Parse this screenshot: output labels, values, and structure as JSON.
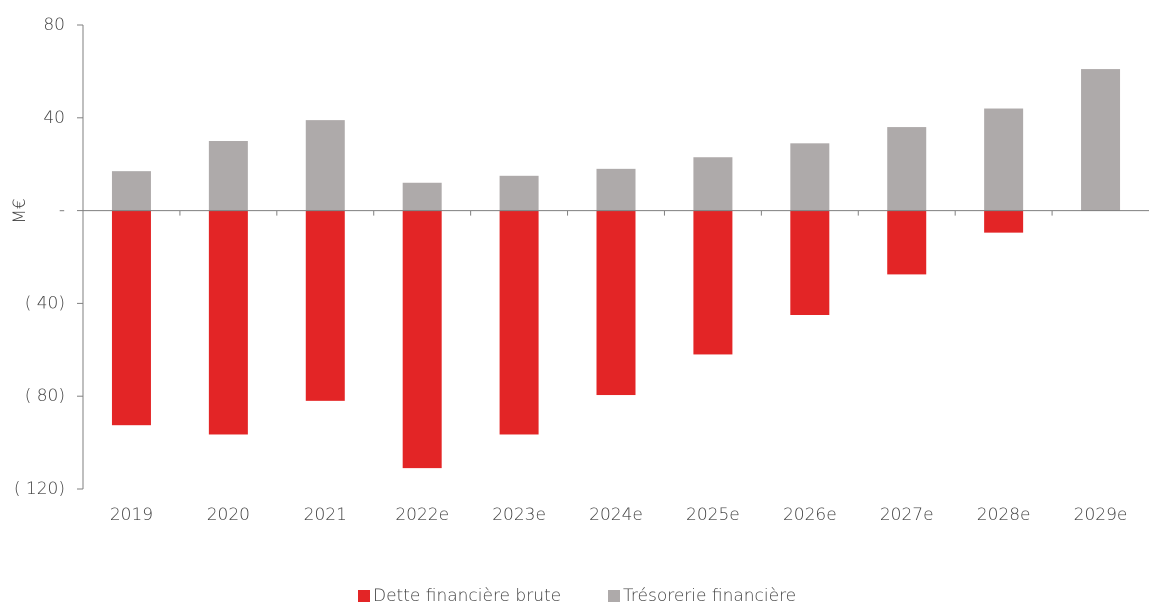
{
  "chart_data": {
    "type": "bar",
    "ylabel": "M€",
    "categories": [
      "2019",
      "2020",
      "2021",
      "2022e",
      "2023e",
      "2024e",
      "2025e",
      "2026e",
      "2027e",
      "2028e",
      "2029e"
    ],
    "series": [
      {
        "name": "Dette financière brute",
        "color": "#e32526",
        "values": [
          -92.5,
          -96.5,
          -82,
          -111,
          -96.5,
          -79.5,
          -62,
          -45,
          -27.5,
          -9.5,
          0
        ]
      },
      {
        "name": "Trésorerie financière",
        "color": "#aeaaaa",
        "values": [
          17,
          30,
          39,
          12,
          15,
          18,
          23,
          29,
          36,
          44,
          61
        ]
      }
    ],
    "ylim": [
      -120,
      80
    ],
    "yticks": [
      80,
      40,
      {
        "value": 0,
        "label": "-"
      },
      {
        "value": -40,
        "label": "( 40)"
      },
      {
        "value": -80,
        "label": "( 80)"
      },
      {
        "value": -120,
        "label": "( 120)"
      }
    ],
    "legend": "bottom"
  }
}
